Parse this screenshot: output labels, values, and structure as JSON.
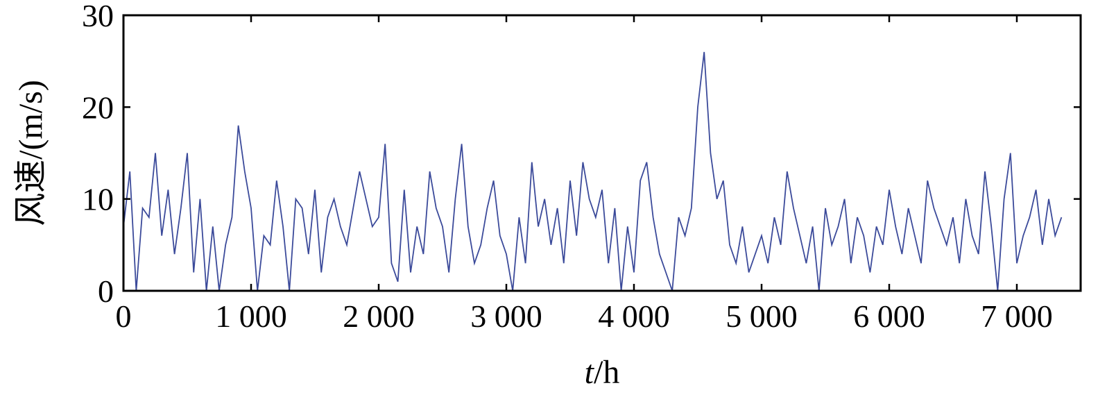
{
  "chart_data": {
    "type": "line",
    "title": "",
    "xlabel": {
      "var": "t",
      "unit": "/h"
    },
    "ylabel": "风速/(m/s)",
    "xlim": [
      0,
      7500
    ],
    "ylim": [
      0,
      30
    ],
    "xticks": [
      0,
      1000,
      2000,
      3000,
      4000,
      5000,
      6000,
      7000
    ],
    "xtick_labels": [
      "0",
      "1 000",
      "2 000",
      "3 000",
      "4 000",
      "5 000",
      "6 000",
      "7 000"
    ],
    "yticks": [
      0,
      10,
      20,
      30
    ],
    "ytick_labels": [
      "0",
      "10",
      "20",
      "30"
    ],
    "grid": false,
    "line_color": "#3b4a9a",
    "series": [
      {
        "x": [
          0,
          50,
          100,
          150,
          200,
          250,
          300,
          350,
          400,
          450,
          500,
          550,
          600,
          650,
          700,
          750,
          800,
          850,
          900,
          950,
          1000,
          1050,
          1100,
          1150,
          1200,
          1250,
          1300,
          1350,
          1400,
          1450,
          1500,
          1550,
          1600,
          1650,
          1700,
          1750,
          1800,
          1850,
          1900,
          1950,
          2000,
          2050,
          2100,
          2150,
          2200,
          2250,
          2300,
          2350,
          2400,
          2450,
          2500,
          2550,
          2600,
          2650,
          2700,
          2750,
          2800,
          2850,
          2900,
          2950,
          3000,
          3050,
          3100,
          3150,
          3200,
          3250,
          3300,
          3350,
          3400,
          3450,
          3500,
          3550,
          3600,
          3650,
          3700,
          3750,
          3800,
          3850,
          3900,
          3950,
          4000,
          4050,
          4100,
          4150,
          4200,
          4250,
          4300,
          4350,
          4400,
          4450,
          4500,
          4550,
          4600,
          4650,
          4700,
          4750,
          4800,
          4850,
          4900,
          4950,
          5000,
          5050,
          5100,
          5150,
          5200,
          5250,
          5300,
          5350,
          5400,
          5450,
          5500,
          5550,
          5600,
          5650,
          5700,
          5750,
          5800,
          5850,
          5900,
          5950,
          6000,
          6050,
          6100,
          6150,
          6200,
          6250,
          6300,
          6350,
          6400,
          6450,
          6500,
          6550,
          6600,
          6650,
          6700,
          6750,
          6800,
          6850,
          6900,
          6950,
          7000,
          7050,
          7100,
          7150,
          7200,
          7250,
          7300,
          7350
        ],
        "y": [
          7,
          13,
          0,
          9,
          8,
          15,
          6,
          11,
          4,
          9,
          15,
          2,
          10,
          0,
          7,
          0,
          5,
          8,
          18,
          13,
          9,
          0,
          6,
          5,
          12,
          7,
          0,
          10,
          9,
          4,
          11,
          2,
          8,
          10,
          7,
          5,
          9,
          13,
          10,
          7,
          8,
          16,
          3,
          1,
          11,
          2,
          7,
          4,
          13,
          9,
          7,
          2,
          10,
          16,
          7,
          3,
          5,
          9,
          12,
          6,
          4,
          0,
          8,
          3,
          14,
          7,
          10,
          5,
          9,
          3,
          12,
          6,
          14,
          10,
          8,
          11,
          3,
          9,
          0,
          7,
          2,
          12,
          14,
          8,
          4,
          2,
          0,
          8,
          6,
          9,
          20,
          26,
          15,
          10,
          12,
          5,
          3,
          7,
          2,
          4,
          6,
          3,
          8,
          5,
          13,
          9,
          6,
          3,
          7,
          0,
          9,
          5,
          7,
          10,
          3,
          8,
          6,
          2,
          7,
          5,
          11,
          7,
          4,
          9,
          6,
          3,
          12,
          9,
          7,
          5,
          8,
          3,
          10,
          6,
          4,
          13,
          7,
          0,
          10,
          15,
          3,
          6,
          8,
          11,
          5,
          10,
          6,
          8
        ]
      }
    ]
  }
}
